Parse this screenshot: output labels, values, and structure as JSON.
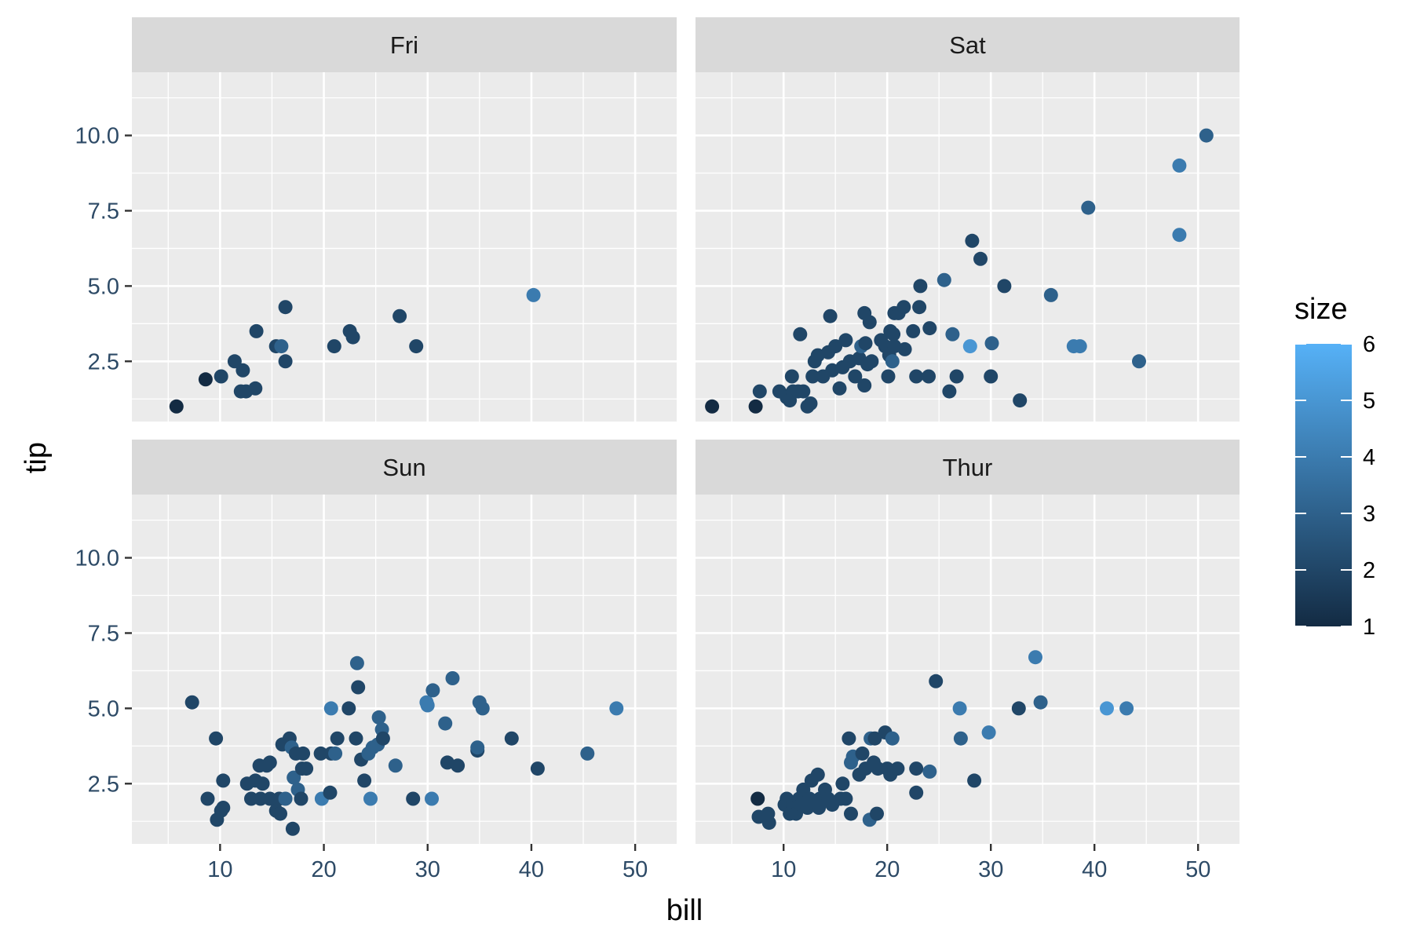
{
  "chart_data": {
    "type": "scatter",
    "xlabel": "bill",
    "ylabel": "tip",
    "xlim": [
      1.5,
      54
    ],
    "ylim": [
      0.5,
      12.1
    ],
    "x_ticks": [
      10,
      20,
      30,
      40,
      50
    ],
    "x_tick_labels": [
      "10",
      "20",
      "30",
      "40",
      "50"
    ],
    "y_ticks": [
      2.5,
      5.0,
      7.5,
      10.0
    ],
    "y_tick_labels": [
      "2.5",
      "5.0",
      "7.5",
      "10.0"
    ],
    "grid": true,
    "legend": {
      "title": "size",
      "type": "colorbar",
      "min": 1,
      "max": 6,
      "breaks": [
        1,
        2,
        3,
        4,
        5,
        6
      ],
      "break_labels": [
        "1",
        "2",
        "3",
        "4",
        "5",
        "6"
      ],
      "color_low": "#132b43",
      "color_high": "#56b1f7",
      "placement": "right"
    },
    "panels": [
      {
        "name": "Fri",
        "points": [
          [
            5.8,
            1.0,
            1
          ],
          [
            8.6,
            1.9,
            1
          ],
          [
            10.1,
            2.0,
            2
          ],
          [
            11.4,
            2.5,
            2
          ],
          [
            12.0,
            1.5,
            2
          ],
          [
            12.2,
            2.2,
            2
          ],
          [
            12.5,
            1.5,
            2
          ],
          [
            13.4,
            1.6,
            2
          ],
          [
            13.5,
            3.5,
            2
          ],
          [
            15.4,
            3.0,
            2
          ],
          [
            15.9,
            3.0,
            3
          ],
          [
            16.3,
            4.3,
            2
          ],
          [
            16.3,
            2.5,
            2
          ],
          [
            21.0,
            3.0,
            2
          ],
          [
            22.5,
            3.5,
            2
          ],
          [
            22.8,
            3.3,
            2
          ],
          [
            27.3,
            4.0,
            2
          ],
          [
            28.9,
            3.0,
            2
          ],
          [
            40.2,
            4.7,
            4
          ]
        ]
      },
      {
        "name": "Sat",
        "points": [
          [
            3.1,
            1.0,
            1
          ],
          [
            7.3,
            1.0,
            1
          ],
          [
            7.7,
            1.5,
            2
          ],
          [
            9.6,
            1.5,
            2
          ],
          [
            10.3,
            1.3,
            2
          ],
          [
            10.6,
            1.2,
            2
          ],
          [
            10.8,
            2.0,
            2
          ],
          [
            10.9,
            1.5,
            2
          ],
          [
            11.4,
            1.5,
            2
          ],
          [
            11.6,
            3.4,
            2
          ],
          [
            11.9,
            1.5,
            2
          ],
          [
            12.3,
            1.0,
            2
          ],
          [
            12.6,
            1.1,
            2
          ],
          [
            12.8,
            2.0,
            2
          ],
          [
            13.0,
            2.5,
            2
          ],
          [
            13.3,
            2.7,
            2
          ],
          [
            13.8,
            2.0,
            2
          ],
          [
            14.3,
            2.8,
            2
          ],
          [
            14.5,
            4.0,
            2
          ],
          [
            14.7,
            2.2,
            2
          ],
          [
            15.0,
            3.0,
            2
          ],
          [
            15.4,
            1.6,
            2
          ],
          [
            15.7,
            2.3,
            2
          ],
          [
            16.0,
            3.2,
            2
          ],
          [
            16.4,
            2.5,
            2
          ],
          [
            16.9,
            2.0,
            2
          ],
          [
            17.3,
            2.6,
            2
          ],
          [
            17.5,
            3.0,
            3
          ],
          [
            17.8,
            1.7,
            2
          ],
          [
            17.8,
            4.1,
            2
          ],
          [
            17.9,
            3.1,
            2
          ],
          [
            18.1,
            2.4,
            2
          ],
          [
            18.3,
            3.8,
            2
          ],
          [
            18.5,
            2.5,
            2
          ],
          [
            19.4,
            3.2,
            2
          ],
          [
            19.8,
            3.0,
            2
          ],
          [
            20.1,
            2.0,
            2
          ],
          [
            20.2,
            2.7,
            2
          ],
          [
            20.3,
            3.5,
            2
          ],
          [
            20.5,
            2.5,
            3
          ],
          [
            20.6,
            3.4,
            2
          ],
          [
            20.7,
            3.0,
            2
          ],
          [
            20.7,
            4.1,
            2
          ],
          [
            21.1,
            4.1,
            2
          ],
          [
            21.6,
            4.3,
            2
          ],
          [
            21.7,
            2.9,
            2
          ],
          [
            22.5,
            3.5,
            2
          ],
          [
            22.8,
            2.0,
            2
          ],
          [
            23.1,
            4.3,
            2
          ],
          [
            23.2,
            5.0,
            2
          ],
          [
            24.0,
            2.0,
            2
          ],
          [
            24.1,
            3.6,
            2
          ],
          [
            25.5,
            5.2,
            3
          ],
          [
            26.0,
            1.5,
            2
          ],
          [
            26.3,
            3.4,
            3
          ],
          [
            26.7,
            2.0,
            2
          ],
          [
            28.0,
            3.0,
            5
          ],
          [
            28.2,
            6.5,
            2
          ],
          [
            29.0,
            5.9,
            2
          ],
          [
            30.0,
            2.0,
            2
          ],
          [
            30.1,
            3.1,
            3
          ],
          [
            31.3,
            5.0,
            2
          ],
          [
            32.8,
            1.2,
            2
          ],
          [
            35.8,
            4.7,
            3
          ],
          [
            38.0,
            3.0,
            4
          ],
          [
            38.6,
            3.0,
            4
          ],
          [
            39.4,
            7.6,
            3
          ],
          [
            44.3,
            2.5,
            3
          ],
          [
            48.2,
            9.0,
            4
          ],
          [
            48.2,
            6.7,
            4
          ],
          [
            50.8,
            10.0,
            3
          ]
        ]
      },
      {
        "name": "Sun",
        "points": [
          [
            7.3,
            5.2,
            2
          ],
          [
            8.8,
            2.0,
            2
          ],
          [
            9.6,
            4.0,
            2
          ],
          [
            9.7,
            1.3,
            2
          ],
          [
            10.1,
            1.6,
            2
          ],
          [
            10.3,
            1.7,
            2
          ],
          [
            10.3,
            2.6,
            2
          ],
          [
            12.6,
            2.5,
            2
          ],
          [
            13.0,
            2.0,
            2
          ],
          [
            13.4,
            2.6,
            2
          ],
          [
            13.8,
            3.1,
            2
          ],
          [
            13.9,
            2.0,
            2
          ],
          [
            14.1,
            2.5,
            2
          ],
          [
            14.5,
            3.1,
            2
          ],
          [
            14.8,
            2.0,
            2
          ],
          [
            14.8,
            3.2,
            2
          ],
          [
            15.4,
            1.6,
            2
          ],
          [
            15.7,
            2.0,
            2
          ],
          [
            15.8,
            1.5,
            2
          ],
          [
            16.0,
            3.8,
            2
          ],
          [
            16.3,
            2.0,
            3
          ],
          [
            16.7,
            4.0,
            2
          ],
          [
            16.9,
            3.7,
            3
          ],
          [
            17.0,
            1.0,
            2
          ],
          [
            17.1,
            2.7,
            3
          ],
          [
            17.3,
            3.5,
            2
          ],
          [
            17.5,
            2.3,
            3
          ],
          [
            17.8,
            2.0,
            2
          ],
          [
            17.9,
            3.0,
            2
          ],
          [
            18.0,
            3.5,
            2
          ],
          [
            18.3,
            3.0,
            2
          ],
          [
            19.7,
            3.5,
            2
          ],
          [
            19.8,
            2.0,
            4
          ],
          [
            20.6,
            2.2,
            2
          ],
          [
            20.7,
            3.5,
            2
          ],
          [
            20.7,
            5.0,
            4
          ],
          [
            21.1,
            3.5,
            3
          ],
          [
            21.3,
            4.0,
            2
          ],
          [
            22.4,
            5.0,
            2
          ],
          [
            23.1,
            4.0,
            2
          ],
          [
            23.2,
            6.5,
            3
          ],
          [
            23.3,
            5.7,
            2
          ],
          [
            23.6,
            3.3,
            2
          ],
          [
            23.9,
            2.6,
            2
          ],
          [
            24.3,
            3.5,
            3
          ],
          [
            24.5,
            2.0,
            4
          ],
          [
            24.7,
            3.7,
            3
          ],
          [
            25.2,
            3.8,
            3
          ],
          [
            25.3,
            4.7,
            3
          ],
          [
            25.6,
            4.3,
            3
          ],
          [
            25.7,
            4.0,
            2
          ],
          [
            26.9,
            3.1,
            3
          ],
          [
            28.6,
            2.0,
            2
          ],
          [
            29.9,
            5.2,
            4
          ],
          [
            30.0,
            5.1,
            4
          ],
          [
            30.4,
            2.0,
            4
          ],
          [
            30.5,
            5.6,
            3
          ],
          [
            31.7,
            4.5,
            3
          ],
          [
            31.9,
            3.2,
            2
          ],
          [
            32.4,
            6.0,
            3
          ],
          [
            32.9,
            3.1,
            2
          ],
          [
            34.8,
            3.6,
            2
          ],
          [
            34.8,
            3.7,
            3
          ],
          [
            35.0,
            5.2,
            3
          ],
          [
            35.3,
            5.0,
            3
          ],
          [
            38.1,
            4.0,
            2
          ],
          [
            40.6,
            3.0,
            2
          ],
          [
            45.4,
            3.5,
            3
          ],
          [
            48.2,
            5.0,
            4
          ]
        ]
      },
      {
        "name": "Thur",
        "points": [
          [
            7.5,
            2.0,
            1
          ],
          [
            7.6,
            1.4,
            2
          ],
          [
            8.5,
            1.5,
            2
          ],
          [
            8.6,
            1.2,
            2
          ],
          [
            10.1,
            1.8,
            2
          ],
          [
            10.3,
            2.0,
            2
          ],
          [
            10.6,
            1.5,
            2
          ],
          [
            10.9,
            1.8,
            2
          ],
          [
            11.2,
            1.5,
            2
          ],
          [
            11.5,
            2.0,
            2
          ],
          [
            11.7,
            1.8,
            2
          ],
          [
            11.9,
            2.3,
            2
          ],
          [
            12.3,
            1.7,
            2
          ],
          [
            12.5,
            2.0,
            2
          ],
          [
            12.7,
            2.6,
            2
          ],
          [
            13.0,
            1.8,
            2
          ],
          [
            13.3,
            2.8,
            2
          ],
          [
            13.4,
            1.7,
            2
          ],
          [
            13.5,
            2.0,
            2
          ],
          [
            14.0,
            2.3,
            2
          ],
          [
            14.3,
            2.0,
            2
          ],
          [
            14.7,
            1.8,
            2
          ],
          [
            15.5,
            2.0,
            2
          ],
          [
            15.7,
            2.5,
            2
          ],
          [
            16.0,
            2.0,
            2
          ],
          [
            16.3,
            4.0,
            2
          ],
          [
            16.5,
            1.5,
            2
          ],
          [
            16.5,
            3.2,
            3
          ],
          [
            16.7,
            3.4,
            3
          ],
          [
            17.3,
            2.8,
            2
          ],
          [
            17.6,
            3.5,
            2
          ],
          [
            17.9,
            3.0,
            2
          ],
          [
            18.3,
            1.3,
            3
          ],
          [
            18.4,
            4.0,
            3
          ],
          [
            18.7,
            3.2,
            2
          ],
          [
            18.8,
            4.0,
            2
          ],
          [
            19.0,
            1.5,
            2
          ],
          [
            19.1,
            3.0,
            2
          ],
          [
            19.8,
            4.2,
            2
          ],
          [
            20.0,
            3.0,
            2
          ],
          [
            20.3,
            2.8,
            2
          ],
          [
            20.5,
            4.0,
            3
          ],
          [
            21.0,
            3.0,
            2
          ],
          [
            22.8,
            2.2,
            2
          ],
          [
            22.8,
            3.0,
            2
          ],
          [
            24.1,
            2.9,
            3
          ],
          [
            24.7,
            5.9,
            2
          ],
          [
            27.0,
            5.0,
            4
          ],
          [
            27.1,
            4.0,
            3
          ],
          [
            28.4,
            2.6,
            2
          ],
          [
            29.8,
            4.2,
            4
          ],
          [
            32.7,
            5.0,
            2
          ],
          [
            34.3,
            6.7,
            4
          ],
          [
            34.8,
            5.2,
            3
          ],
          [
            41.2,
            5.0,
            5
          ],
          [
            43.1,
            5.0,
            4
          ]
        ]
      }
    ]
  }
}
